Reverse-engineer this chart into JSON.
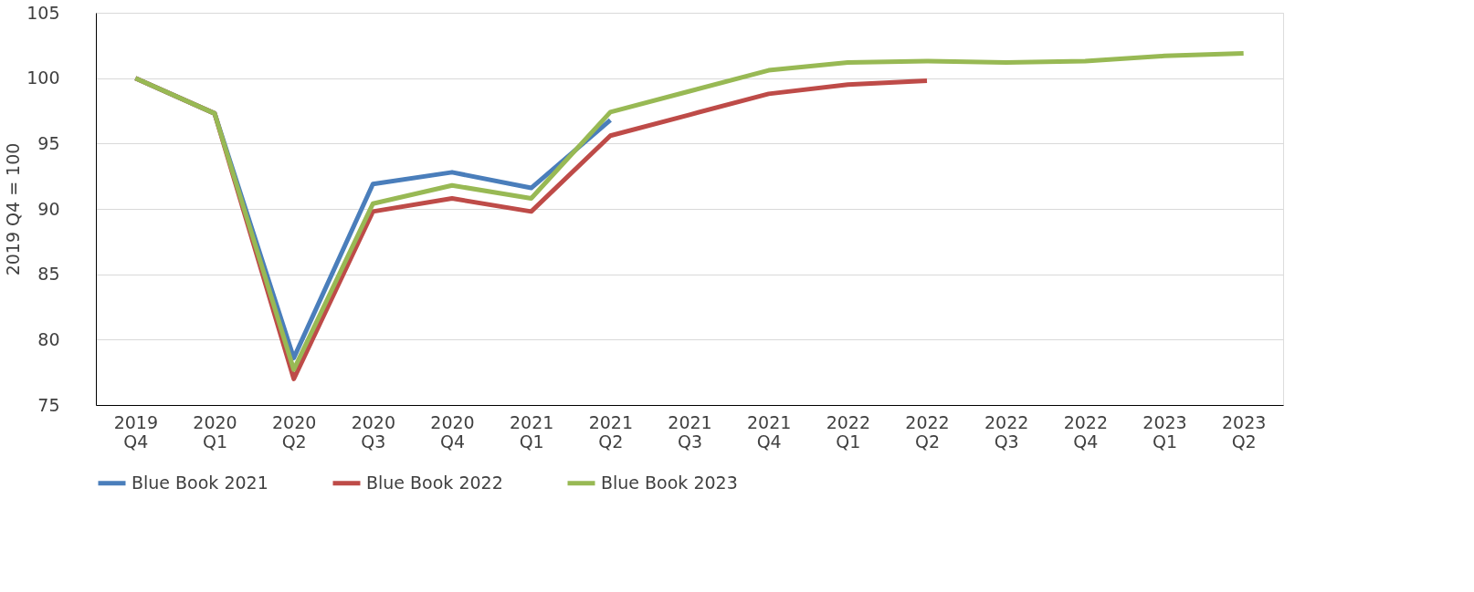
{
  "chart_data": {
    "type": "line",
    "ylabel": "2019 Q4 = 100",
    "categories": [
      "2019 Q4",
      "2020 Q1",
      "2020 Q2",
      "2020 Q3",
      "2020 Q4",
      "2021 Q1",
      "2021 Q2",
      "2021 Q3",
      "2021 Q4",
      "2022 Q1",
      "2022 Q2",
      "2022 Q3",
      "2022 Q4",
      "2023 Q1",
      "2023 Q2"
    ],
    "series": [
      {
        "name": "Blue Book 2021",
        "color": "#4a7ebb",
        "values": [
          100,
          97.3,
          78.6,
          91.9,
          92.8,
          91.6,
          96.8,
          null,
          null,
          null,
          null,
          null,
          null,
          null,
          null
        ]
      },
      {
        "name": "Blue Book 2022",
        "color": "#be4b48",
        "values": [
          100,
          97.3,
          77.0,
          89.8,
          90.8,
          89.8,
          95.6,
          97.2,
          98.8,
          99.5,
          99.8,
          null,
          null,
          null,
          null
        ]
      },
      {
        "name": "Blue Book 2023",
        "color": "#98b954",
        "values": [
          100,
          97.3,
          77.7,
          90.4,
          91.8,
          90.8,
          97.4,
          99.0,
          100.6,
          101.2,
          101.3,
          101.2,
          101.3,
          101.7,
          101.9
        ]
      }
    ],
    "ylim": [
      75,
      105
    ],
    "yticks": [
      75,
      80,
      85,
      90,
      95,
      100,
      105
    ],
    "grid": "y",
    "legend": "bottom",
    "marker": "none",
    "line_style": "solid"
  }
}
